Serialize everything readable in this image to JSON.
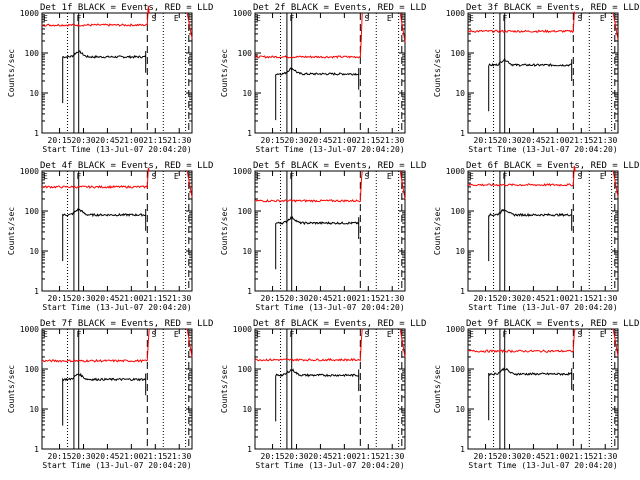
{
  "figure": {
    "grid": "3x3"
  },
  "chart_data": [
    {
      "type": "line",
      "title": "Det 1f BLACK = Events, RED = LLD",
      "xlabel": "Start Time (13-Jul-07 20:04:20)",
      "ylabel": "Counts/sec",
      "yscale": "log",
      "ylim": [
        1,
        1000
      ],
      "xlim": [
        "20:04",
        "21:38"
      ],
      "x_ticks": [
        "20:15",
        "20:30",
        "20:45",
        "21:00",
        "21:15",
        "21:30"
      ],
      "y_ticks": [
        "1",
        "10",
        "100",
        "1000"
      ],
      "markers": [
        {
          "label": "E",
          "time": "20:04"
        },
        {
          "label": "F",
          "time": "20:25"
        },
        {
          "label": "S",
          "time": "21:12"
        },
        {
          "label": "E",
          "time": "21:26"
        }
      ],
      "dotted_lines": [
        "20:20",
        "21:20",
        "21:34"
      ],
      "dashed_lines": [
        "21:10",
        "21:36"
      ],
      "solid_lines": [
        "20:24",
        "20:27"
      ],
      "series": [
        {
          "name": "BLACK = Events",
          "color": "#000000",
          "level": 80,
          "start": "20:17",
          "end": "21:09"
        },
        {
          "name": "RED = LLD",
          "color": "#ff0000",
          "level": 500,
          "start": "20:04",
          "end": "21:10"
        }
      ]
    },
    {
      "type": "line",
      "title": "Det 2f BLACK = Events, RED = LLD",
      "xlabel": "Start Time (13-Jul-07 20:04:20)",
      "ylabel": "Counts/sec",
      "yscale": "log",
      "ylim": [
        1,
        1000
      ],
      "xlim": [
        "20:04",
        "21:38"
      ],
      "x_ticks": [
        "20:15",
        "20:30",
        "20:45",
        "21:00",
        "21:15",
        "21:30"
      ],
      "y_ticks": [
        "1",
        "10",
        "100",
        "1000"
      ],
      "markers": [
        {
          "label": "E",
          "time": "20:04"
        },
        {
          "label": "F",
          "time": "20:25"
        },
        {
          "label": "S",
          "time": "21:12"
        },
        {
          "label": "E",
          "time": "21:26"
        }
      ],
      "dotted_lines": [
        "20:20",
        "21:20",
        "21:34"
      ],
      "dashed_lines": [
        "21:10",
        "21:36"
      ],
      "solid_lines": [
        "20:24",
        "20:27"
      ],
      "series": [
        {
          "name": "BLACK = Events",
          "color": "#000000",
          "level": 30,
          "start": "20:17",
          "end": "21:09"
        },
        {
          "name": "RED = LLD",
          "color": "#ff0000",
          "level": 80,
          "start": "20:04",
          "end": "21:10"
        }
      ]
    },
    {
      "type": "line",
      "title": "Det 3f BLACK = Events, RED = LLD",
      "xlabel": "Start Time (13-Jul-07 20:04:20)",
      "ylabel": "Counts/sec",
      "yscale": "log",
      "ylim": [
        1,
        1000
      ],
      "xlim": [
        "20:04",
        "21:38"
      ],
      "x_ticks": [
        "20:15",
        "20:30",
        "20:45",
        "21:00",
        "21:15",
        "21:30"
      ],
      "y_ticks": [
        "1",
        "10",
        "100",
        "1000"
      ],
      "markers": [
        {
          "label": "E",
          "time": "20:04"
        },
        {
          "label": "F",
          "time": "20:25"
        },
        {
          "label": "S",
          "time": "21:12"
        },
        {
          "label": "E",
          "time": "21:26"
        }
      ],
      "dotted_lines": [
        "20:20",
        "21:20",
        "21:34"
      ],
      "dashed_lines": [
        "21:10",
        "21:36"
      ],
      "solid_lines": [
        "20:24",
        "20:27"
      ],
      "series": [
        {
          "name": "BLACK = Events",
          "color": "#000000",
          "level": 50,
          "start": "20:17",
          "end": "21:09"
        },
        {
          "name": "RED = LLD",
          "color": "#ff0000",
          "level": 350,
          "start": "20:04",
          "end": "21:10"
        }
      ]
    },
    {
      "type": "line",
      "title": "Det 4f BLACK = Events, RED = LLD",
      "xlabel": "Start Time (13-Jul-07 20:04:20)",
      "ylabel": "Counts/sec",
      "yscale": "log",
      "ylim": [
        1,
        1000
      ],
      "xlim": [
        "20:04",
        "21:38"
      ],
      "x_ticks": [
        "20:15",
        "20:30",
        "20:45",
        "21:00",
        "21:15",
        "21:30"
      ],
      "y_ticks": [
        "1",
        "10",
        "100",
        "1000"
      ],
      "markers": [
        {
          "label": "E",
          "time": "20:04"
        },
        {
          "label": "F",
          "time": "20:25"
        },
        {
          "label": "S",
          "time": "21:12"
        },
        {
          "label": "E",
          "time": "21:26"
        }
      ],
      "dotted_lines": [
        "20:20",
        "21:20",
        "21:34"
      ],
      "dashed_lines": [
        "21:10",
        "21:36"
      ],
      "solid_lines": [
        "20:24",
        "20:27"
      ],
      "series": [
        {
          "name": "BLACK = Events",
          "color": "#000000",
          "level": 80,
          "start": "20:17",
          "end": "21:09"
        },
        {
          "name": "RED = LLD",
          "color": "#ff0000",
          "level": 400,
          "start": "20:04",
          "end": "21:10"
        }
      ]
    },
    {
      "type": "line",
      "title": "Det 5f BLACK = Events, RED = LLD",
      "xlabel": "Start Time (13-Jul-07 20:04:20)",
      "ylabel": "Counts/sec",
      "yscale": "log",
      "ylim": [
        1,
        1000
      ],
      "xlim": [
        "20:04",
        "21:38"
      ],
      "x_ticks": [
        "20:15",
        "20:30",
        "20:45",
        "21:00",
        "21:15",
        "21:30"
      ],
      "y_ticks": [
        "1",
        "10",
        "100",
        "1000"
      ],
      "markers": [
        {
          "label": "E",
          "time": "20:04"
        },
        {
          "label": "F",
          "time": "20:25"
        },
        {
          "label": "S",
          "time": "21:12"
        },
        {
          "label": "E",
          "time": "21:26"
        }
      ],
      "dotted_lines": [
        "20:20",
        "21:20",
        "21:34"
      ],
      "dashed_lines": [
        "21:10",
        "21:36"
      ],
      "solid_lines": [
        "20:24",
        "20:27"
      ],
      "series": [
        {
          "name": "BLACK = Events",
          "color": "#000000",
          "level": 50,
          "start": "20:17",
          "end": "21:09"
        },
        {
          "name": "RED = LLD",
          "color": "#ff0000",
          "level": 180,
          "start": "20:04",
          "end": "21:10"
        }
      ]
    },
    {
      "type": "line",
      "title": "Det 6f BLACK = Events, RED = LLD",
      "xlabel": "Start Time (13-Jul-07 20:04:20)",
      "ylabel": "Counts/sec",
      "yscale": "log",
      "ylim": [
        1,
        1000
      ],
      "xlim": [
        "20:04",
        "21:38"
      ],
      "x_ticks": [
        "20:15",
        "20:30",
        "20:45",
        "21:00",
        "21:15",
        "21:30"
      ],
      "y_ticks": [
        "1",
        "10",
        "100",
        "1000"
      ],
      "markers": [
        {
          "label": "E",
          "time": "20:04"
        },
        {
          "label": "F",
          "time": "20:25"
        },
        {
          "label": "S",
          "time": "21:12"
        },
        {
          "label": "E",
          "time": "21:26"
        }
      ],
      "dotted_lines": [
        "20:20",
        "21:20",
        "21:34"
      ],
      "dashed_lines": [
        "21:10",
        "21:36"
      ],
      "solid_lines": [
        "20:24",
        "20:27"
      ],
      "series": [
        {
          "name": "BLACK = Events",
          "color": "#000000",
          "level": 80,
          "start": "20:17",
          "end": "21:09"
        },
        {
          "name": "RED = LLD",
          "color": "#ff0000",
          "level": 450,
          "start": "20:04",
          "end": "21:10"
        }
      ]
    },
    {
      "type": "line",
      "title": "Det 7f BLACK = Events, RED = LLD",
      "xlabel": "Start Time (13-Jul-07 20:04:20)",
      "ylabel": "Counts/sec",
      "yscale": "log",
      "ylim": [
        1,
        1000
      ],
      "xlim": [
        "20:04",
        "21:38"
      ],
      "x_ticks": [
        "20:15",
        "20:30",
        "20:45",
        "21:00",
        "21:15",
        "21:30"
      ],
      "y_ticks": [
        "1",
        "10",
        "100",
        "1000"
      ],
      "markers": [
        {
          "label": "E",
          "time": "20:04"
        },
        {
          "label": "F",
          "time": "20:25"
        },
        {
          "label": "S",
          "time": "21:12"
        },
        {
          "label": "E",
          "time": "21:26"
        }
      ],
      "dotted_lines": [
        "20:20",
        "21:20",
        "21:34"
      ],
      "dashed_lines": [
        "21:10",
        "21:36"
      ],
      "solid_lines": [
        "20:24",
        "20:27"
      ],
      "series": [
        {
          "name": "BLACK = Events",
          "color": "#000000",
          "level": 55,
          "start": "20:17",
          "end": "21:09"
        },
        {
          "name": "RED = LLD",
          "color": "#ff0000",
          "level": 160,
          "start": "20:04",
          "end": "21:10"
        }
      ]
    },
    {
      "type": "line",
      "title": "Det 8f BLACK = Events, RED = LLD",
      "xlabel": "Start Time (13-Jul-07 20:04:20)",
      "ylabel": "Counts/sec",
      "yscale": "log",
      "ylim": [
        1,
        1000
      ],
      "xlim": [
        "20:04",
        "21:38"
      ],
      "x_ticks": [
        "20:15",
        "20:30",
        "20:45",
        "21:00",
        "21:15",
        "21:30"
      ],
      "y_ticks": [
        "1",
        "10",
        "100",
        "1000"
      ],
      "markers": [
        {
          "label": "E",
          "time": "20:04"
        },
        {
          "label": "F",
          "time": "20:25"
        },
        {
          "label": "S",
          "time": "21:12"
        },
        {
          "label": "E",
          "time": "21:26"
        }
      ],
      "dotted_lines": [
        "20:20",
        "21:20",
        "21:34"
      ],
      "dashed_lines": [
        "21:10",
        "21:36"
      ],
      "solid_lines": [
        "20:24",
        "20:27"
      ],
      "series": [
        {
          "name": "BLACK = Events",
          "color": "#000000",
          "level": 70,
          "start": "20:17",
          "end": "21:09"
        },
        {
          "name": "RED = LLD",
          "color": "#ff0000",
          "level": 170,
          "start": "20:04",
          "end": "21:10"
        }
      ]
    },
    {
      "type": "line",
      "title": "Det 9f BLACK = Events, RED = LLD",
      "xlabel": "Start Time (13-Jul-07 20:04:20)",
      "ylabel": "Counts/sec",
      "yscale": "log",
      "ylim": [
        1,
        1000
      ],
      "xlim": [
        "20:04",
        "21:38"
      ],
      "x_ticks": [
        "20:15",
        "20:30",
        "20:45",
        "21:00",
        "21:15",
        "21:30"
      ],
      "y_ticks": [
        "1",
        "10",
        "100",
        "1000"
      ],
      "markers": [
        {
          "label": "E",
          "time": "20:04"
        },
        {
          "label": "F",
          "time": "20:25"
        },
        {
          "label": "S",
          "time": "21:12"
        },
        {
          "label": "E",
          "time": "21:26"
        }
      ],
      "dotted_lines": [
        "20:20",
        "21:20",
        "21:34"
      ],
      "dashed_lines": [
        "21:10",
        "21:36"
      ],
      "solid_lines": [
        "20:24",
        "20:27"
      ],
      "series": [
        {
          "name": "BLACK = Events",
          "color": "#000000",
          "level": 75,
          "start": "20:17",
          "end": "21:09"
        },
        {
          "name": "RED = LLD",
          "color": "#ff0000",
          "level": 280,
          "start": "20:04",
          "end": "21:10"
        }
      ]
    }
  ]
}
